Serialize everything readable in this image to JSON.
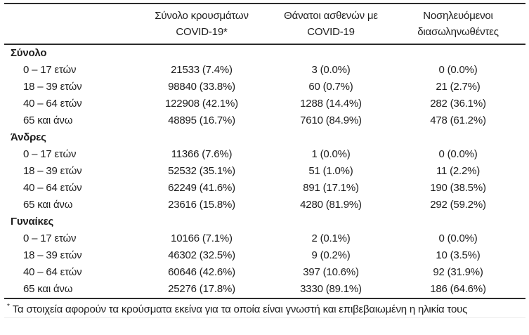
{
  "table": {
    "header": {
      "cases": {
        "line1": "Σύνολο κρουσμάτων",
        "line2": "COVID-19*"
      },
      "deaths": {
        "line1": "Θάνατοι ασθενών με",
        "line2": "COVID-19"
      },
      "intubated": {
        "line1": "Νοσηλευόμενοι",
        "line2": "διασωληνωθέντες"
      }
    },
    "groups": [
      {
        "label": "Σύνολο",
        "rows": [
          {
            "age": "0 – 17 ετών",
            "cases": "21533 (7.4%)",
            "deaths": "3 (0.0%)",
            "intubated": "0 (0.0%)"
          },
          {
            "age": "18 – 39 ετών",
            "cases": "98840 (33.8%)",
            "deaths": "60 (0.7%)",
            "intubated": "21 (2.7%)"
          },
          {
            "age": "40 – 64 ετών",
            "cases": "122908 (42.1%)",
            "deaths": "1288 (14.4%)",
            "intubated": "282 (36.1%)"
          },
          {
            "age": "65 και άνω",
            "cases": "48895 (16.7%)",
            "deaths": "7610 (84.9%)",
            "intubated": "478 (61.2%)"
          }
        ]
      },
      {
        "label": "Άνδρες",
        "rows": [
          {
            "age": "0 – 17 ετών",
            "cases": "11366 (7.6%)",
            "deaths": "1 (0.0%)",
            "intubated": "0 (0.0%)"
          },
          {
            "age": "18 – 39 ετών",
            "cases": "52532 (35.1%)",
            "deaths": "51 (1.0%)",
            "intubated": "11 (2.2%)"
          },
          {
            "age": "40 – 64 ετών",
            "cases": "62249 (41.6%)",
            "deaths": "891 (17.1%)",
            "intubated": "190 (38.5%)"
          },
          {
            "age": "65 και άνω",
            "cases": "23616 (15.8%)",
            "deaths": "4280 (81.9%)",
            "intubated": "292 (59.2%)"
          }
        ]
      },
      {
        "label": "Γυναίκες",
        "rows": [
          {
            "age": "0 – 17 ετών",
            "cases": "10166 (7.1%)",
            "deaths": "2 (0.1%)",
            "intubated": "0 (0.0%)"
          },
          {
            "age": "18 – 39 ετών",
            "cases": "46302 (32.5%)",
            "deaths": "9 (0.2%)",
            "intubated": "10 (3.5%)"
          },
          {
            "age": "40 – 64 ετών",
            "cases": "60646 (42.6%)",
            "deaths": "397 (10.6%)",
            "intubated": "92 (31.9%)"
          },
          {
            "age": "65 και άνω",
            "cases": "25276 (17.8%)",
            "deaths": "3330 (89.1%)",
            "intubated": "186 (64.6%)"
          }
        ]
      }
    ],
    "footnote": {
      "marker": "*",
      "text": "Τα στοιχεία αφορούν τα κρούσματα εκείνα για τα οποία είναι γνωστή και επιβεβαιωμένη η ηλικία τους"
    }
  },
  "colors": {
    "text": "#1d1d1d",
    "rule": "#2b2b2b",
    "faint_rule": "#ececec",
    "background": "#ffffff"
  }
}
